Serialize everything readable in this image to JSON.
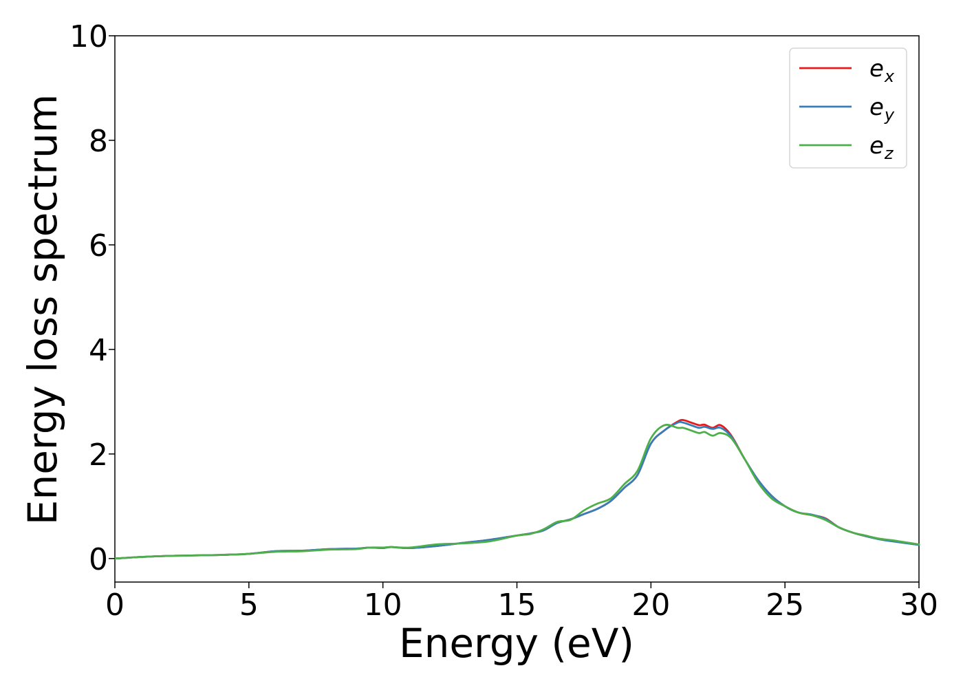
{
  "chart_data": {
    "type": "line",
    "xlabel": "Energy (eV)",
    "ylabel": "Energy loss spectrum",
    "xlim": [
      0,
      30
    ],
    "ylim": [
      -0.45,
      10
    ],
    "xticks": [
      0,
      5,
      10,
      15,
      20,
      25,
      30
    ],
    "yticks": [
      0,
      2,
      4,
      6,
      8,
      10
    ],
    "grid": false,
    "legend_position": "top-right",
    "x": [
      0,
      1,
      2,
      3,
      4,
      5,
      6,
      7,
      8,
      9,
      9.5,
      10,
      10.3,
      11,
      12,
      13,
      14,
      15,
      15.5,
      16,
      16.5,
      17,
      17.5,
      18,
      18.5,
      19,
      19.5,
      20,
      20.5,
      21,
      21.2,
      21.5,
      21.8,
      22,
      22.3,
      22.6,
      23,
      23.5,
      24,
      24.5,
      25,
      25.5,
      26,
      26.5,
      27,
      27.5,
      28,
      28.5,
      29,
      30
    ],
    "series": [
      {
        "name": "e",
        "subscript": "x",
        "color": "#e41a1c",
        "values": [
          0.0,
          0.03,
          0.05,
          0.06,
          0.07,
          0.09,
          0.14,
          0.15,
          0.18,
          0.19,
          0.21,
          0.2,
          0.22,
          0.2,
          0.24,
          0.3,
          0.36,
          0.44,
          0.48,
          0.54,
          0.68,
          0.75,
          0.85,
          0.95,
          1.1,
          1.35,
          1.6,
          2.2,
          2.45,
          2.62,
          2.65,
          2.6,
          2.55,
          2.56,
          2.5,
          2.55,
          2.35,
          1.9,
          1.5,
          1.2,
          1.0,
          0.88,
          0.83,
          0.77,
          0.6,
          0.5,
          0.43,
          0.38,
          0.34,
          0.26
        ]
      },
      {
        "name": "e",
        "subscript": "y",
        "color": "#377eb8",
        "values": [
          0.0,
          0.03,
          0.05,
          0.06,
          0.07,
          0.09,
          0.14,
          0.15,
          0.18,
          0.19,
          0.21,
          0.2,
          0.22,
          0.2,
          0.24,
          0.3,
          0.36,
          0.44,
          0.48,
          0.54,
          0.68,
          0.75,
          0.85,
          0.95,
          1.1,
          1.35,
          1.6,
          2.2,
          2.45,
          2.6,
          2.6,
          2.55,
          2.5,
          2.52,
          2.48,
          2.5,
          2.33,
          1.9,
          1.5,
          1.2,
          1.0,
          0.88,
          0.84,
          0.76,
          0.6,
          0.5,
          0.43,
          0.37,
          0.33,
          0.26
        ]
      },
      {
        "name": "e",
        "subscript": "z",
        "color": "#4daf4a",
        "values": [
          0.0,
          0.03,
          0.05,
          0.06,
          0.07,
          0.09,
          0.13,
          0.14,
          0.17,
          0.18,
          0.21,
          0.21,
          0.22,
          0.21,
          0.27,
          0.29,
          0.33,
          0.44,
          0.47,
          0.56,
          0.7,
          0.74,
          0.92,
          1.05,
          1.15,
          1.42,
          1.68,
          2.3,
          2.55,
          2.5,
          2.5,
          2.45,
          2.4,
          2.42,
          2.35,
          2.4,
          2.3,
          1.9,
          1.45,
          1.15,
          1.0,
          0.88,
          0.83,
          0.74,
          0.6,
          0.5,
          0.44,
          0.38,
          0.35,
          0.27
        ]
      }
    ]
  }
}
